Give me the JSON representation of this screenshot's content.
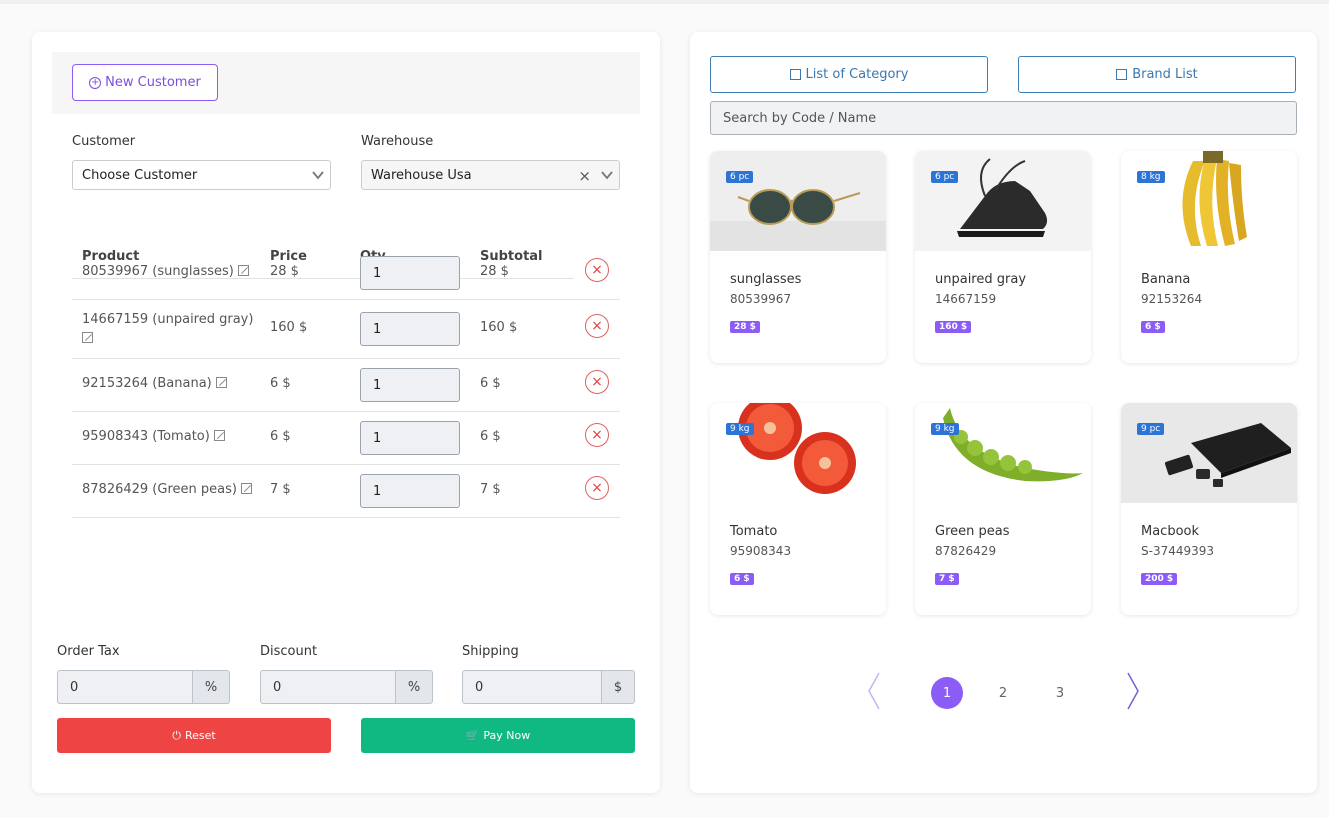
{
  "left": {
    "new_customer_label": "New Customer",
    "customer_label": "Customer",
    "customer_value": "Choose Customer",
    "warehouse_label": "Warehouse",
    "warehouse_value": "Warehouse Usa",
    "columns": [
      "Product",
      "Price",
      "Qty",
      "Subtotal"
    ],
    "rows": [
      {
        "product": "80539967 (sunglasses)",
        "price": "28 $",
        "qty": "1",
        "subtotal": "28 $"
      },
      {
        "product": "14667159 (unpaired gray)",
        "price": "160 $",
        "qty": "1",
        "subtotal": "160 $"
      },
      {
        "product": "92153264 (Banana)",
        "price": "6 $",
        "qty": "1",
        "subtotal": "6 $"
      },
      {
        "product": "95908343 (Tomato)",
        "price": "6 $",
        "qty": "1",
        "subtotal": "6 $"
      },
      {
        "product": "87826429 (Green peas)",
        "price": "7 $",
        "qty": "1",
        "subtotal": "7 $"
      }
    ],
    "order_tax_label": "Order Tax",
    "order_tax_value": "0",
    "order_tax_suffix": "%",
    "discount_label": "Discount",
    "discount_value": "0",
    "discount_suffix": "%",
    "shipping_label": "Shipping",
    "shipping_value": "0",
    "shipping_suffix": "$",
    "reset_label": "Reset",
    "pay_label": "Pay Now"
  },
  "right": {
    "category_label": "List of Category",
    "brand_label": "Brand List",
    "search_placeholder": "Search by Code / Name",
    "products": [
      {
        "name": "sunglasses",
        "code": "80539967",
        "stock": "6 pc",
        "price": "28 $",
        "image": "sunglasses-image"
      },
      {
        "name": "unpaired gray",
        "code": "14667159",
        "stock": "6 pc",
        "price": "160 $",
        "image": "shoe-image"
      },
      {
        "name": "Banana",
        "code": "92153264",
        "stock": "8 kg",
        "price": "6 $",
        "image": "banana-image"
      },
      {
        "name": "Tomato",
        "code": "95908343",
        "stock": "9 kg",
        "price": "6 $",
        "image": "tomato-image"
      },
      {
        "name": "Green peas",
        "code": "87826429",
        "stock": "9 kg",
        "price": "7 $",
        "image": "peas-image"
      },
      {
        "name": "Macbook",
        "code": "S-37449393",
        "stock": "9 pc",
        "price": "200 $",
        "image": "laptop-image"
      }
    ],
    "pages": [
      "1",
      "2",
      "3"
    ],
    "active_page": "1"
  },
  "colors": {
    "accent": "#8b5cf6",
    "danger": "#ef4444",
    "success": "#10b981",
    "link": "#3a78b0",
    "stock_badge": "#2c74d6"
  }
}
